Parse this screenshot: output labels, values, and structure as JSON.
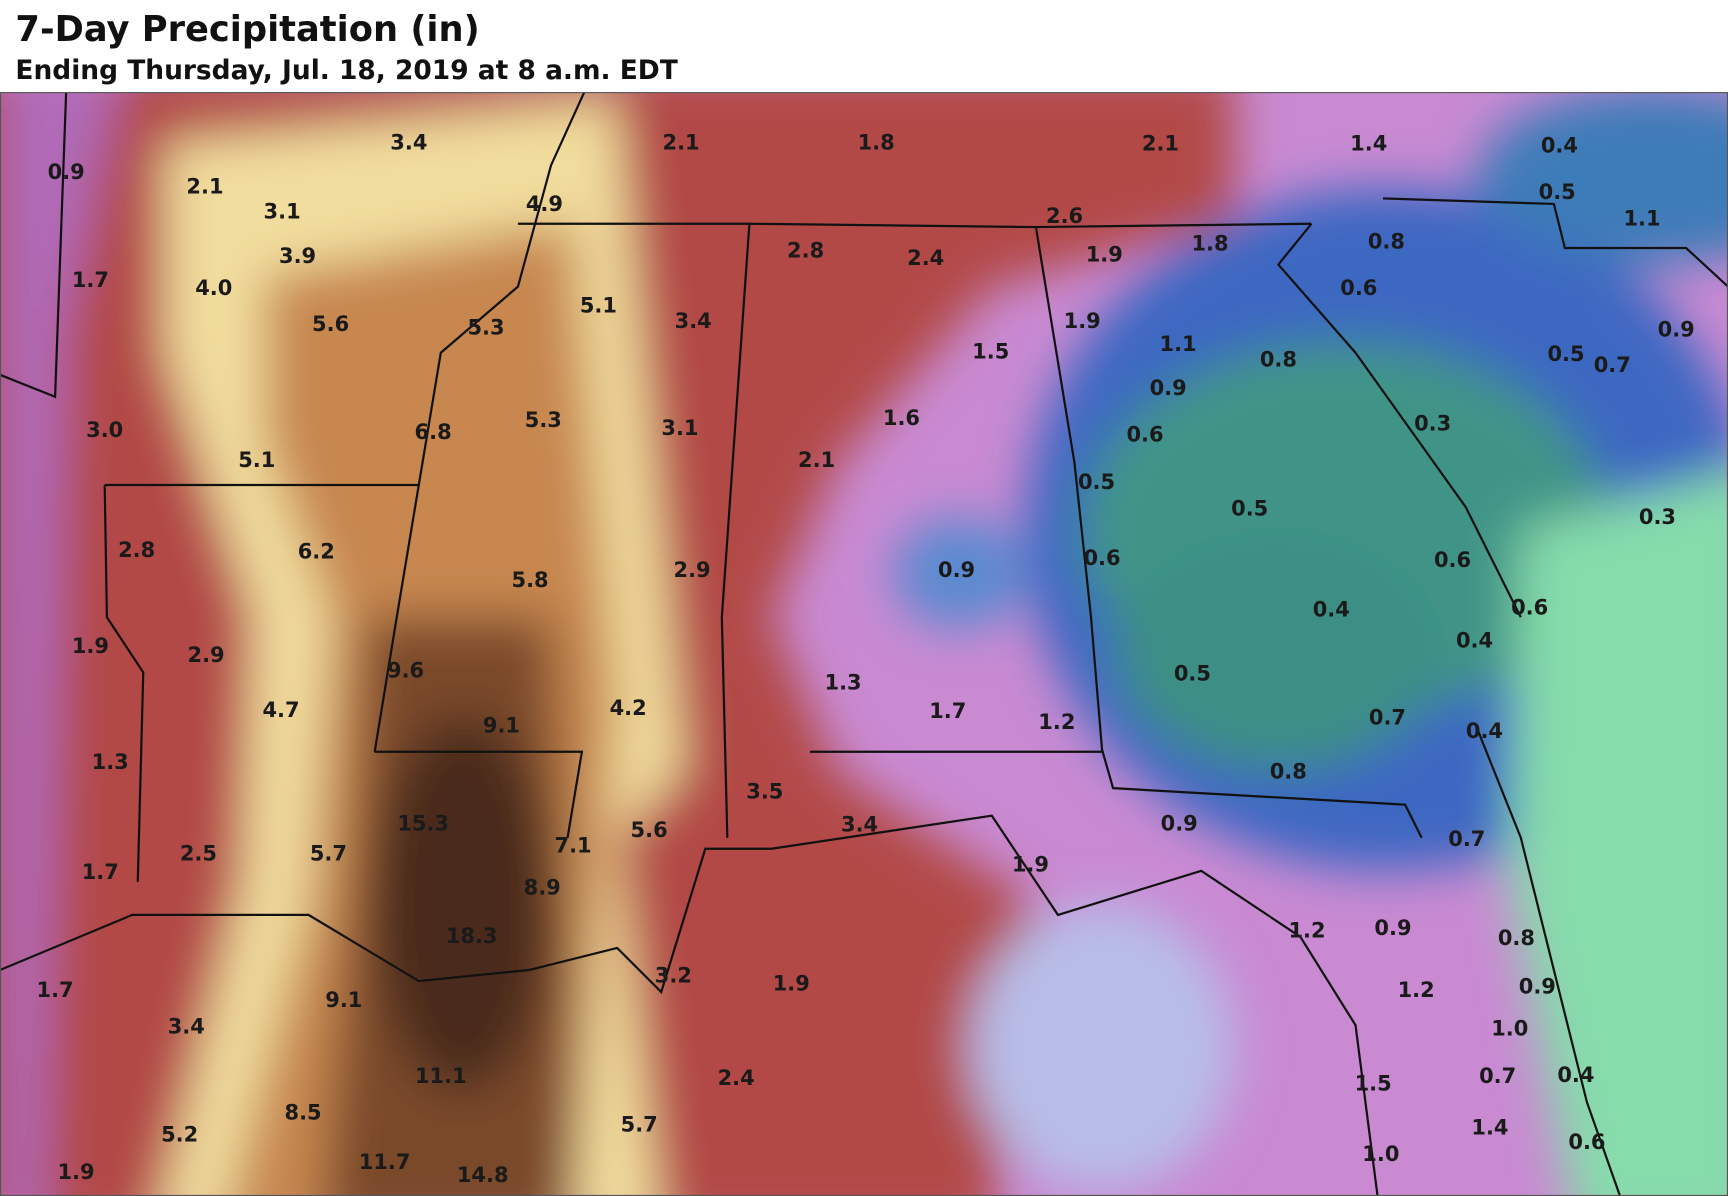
{
  "header": {
    "title": "7-Day Precipitation (in)",
    "subtitle": "Ending Thursday, Jul. 18, 2019 at 8 a.m. EDT"
  },
  "labels": [
    "3.4",
    "0.9",
    "2.1",
    "3.1",
    "3.9",
    "1.7",
    "4.0",
    "5.6",
    "4.9",
    "5.3",
    "5.1",
    "3.4",
    "2.1",
    "1.8",
    "2.1",
    "1.4",
    "0.4",
    "0.5",
    "1.1",
    "2.6",
    "2.8",
    "2.4",
    "1.9",
    "1.8",
    "0.8",
    "0.6",
    "1.9",
    "1.5",
    "1.1",
    "0.8",
    "0.5",
    "0.7",
    "0.9",
    "0.9",
    "0.6",
    "0.3",
    "3.0",
    "6.8",
    "5.3",
    "3.1",
    "1.6",
    "5.1",
    "2.1",
    "0.5",
    "0.5",
    "0.3",
    "2.8",
    "6.2",
    "5.8",
    "2.9",
    "0.9",
    "0.6",
    "0.6",
    "0.4",
    "0.6",
    "0.4",
    "1.9",
    "2.9",
    "9.6",
    "0.5",
    "4.7",
    "4.2",
    "1.3",
    "1.7",
    "1.2",
    "9.1",
    "0.7",
    "0.4",
    "1.3",
    "0.8",
    "3.5",
    "15.3",
    "5.6",
    "7.1",
    "3.4",
    "0.9",
    "0.7",
    "2.5",
    "5.7",
    "1.7",
    "8.9",
    "1.9",
    "18.3",
    "1.2",
    "0.9",
    "0.8",
    "1.7",
    "9.1",
    "3.2",
    "1.9",
    "1.2",
    "0.9",
    "3.4",
    "1.0",
    "11.1",
    "2.4",
    "1.5",
    "0.7",
    "0.4",
    "8.5",
    "5.7",
    "5.2",
    "1.4",
    "0.6",
    "1.9",
    "11.7",
    "14.8",
    "1.0"
  ]
}
